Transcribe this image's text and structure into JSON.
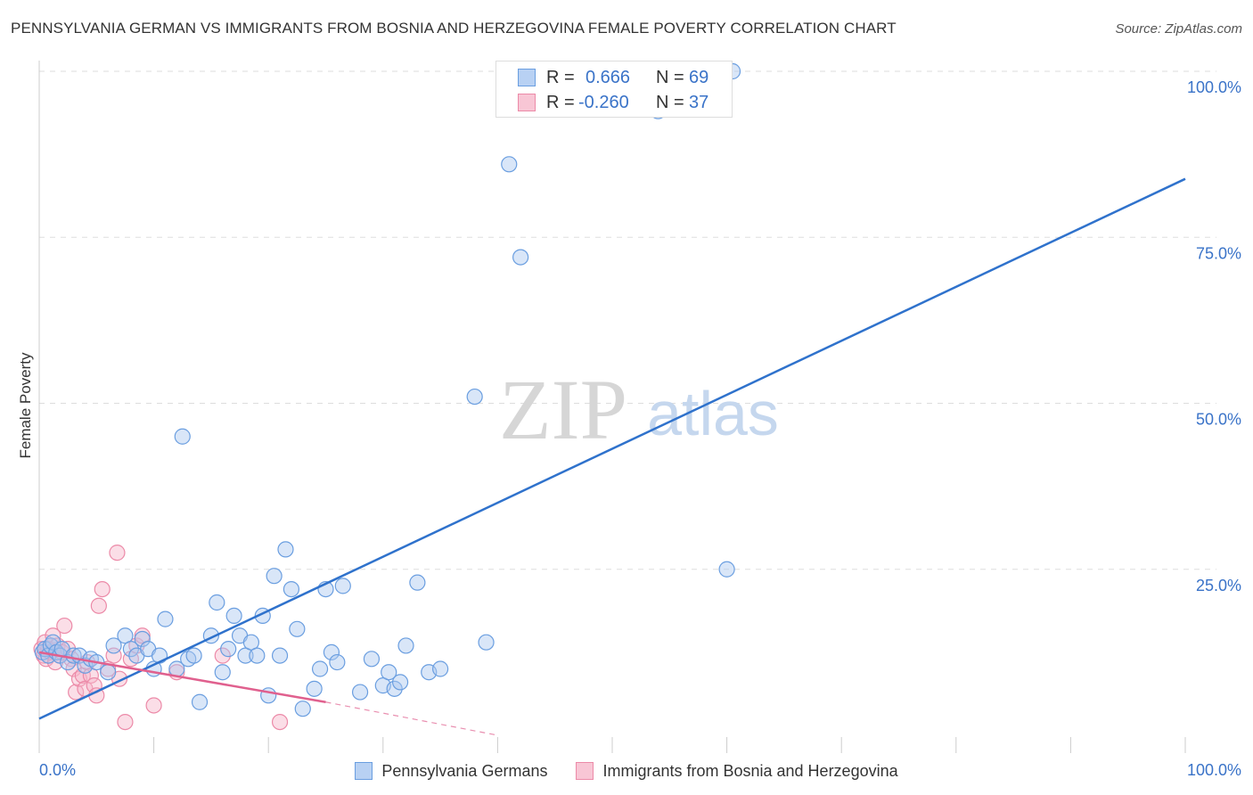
{
  "header": {
    "title": "PENNSYLVANIA GERMAN VS IMMIGRANTS FROM BOSNIA AND HERZEGOVINA FEMALE POVERTY CORRELATION CHART",
    "source": "Source: ZipAtlas.com"
  },
  "watermark": {
    "zip": "ZIP",
    "atlas": "atlas"
  },
  "stats": {
    "row1": {
      "r_label": "R =",
      "r_value": "0.666",
      "n_label": "N =",
      "n_value": "69"
    },
    "row2": {
      "r_label": "R =",
      "r_value": "-0.260",
      "n_label": "N =",
      "n_value": "37"
    }
  },
  "legend": {
    "item1": "Pennsylvania Germans",
    "item2": "Immigrants from Bosnia and Herzegovina"
  },
  "colors": {
    "blue_fill": "#aac8f0",
    "blue_stroke": "#6a9ee0",
    "blue_line": "#2f72cc",
    "pink_fill": "#f6b6c9",
    "pink_stroke": "#ec8aa8",
    "pink_line": "#e0608e",
    "grid": "#dddddd",
    "tick_label": "#3a73c8"
  },
  "chart_data": {
    "type": "scatter",
    "title": "PENNSYLVANIA GERMAN VS IMMIGRANTS FROM BOSNIA AND HERZEGOVINA FEMALE POVERTY CORRELATION CHART",
    "xlabel": "",
    "ylabel": "Female Poverty",
    "xlim": [
      0,
      100
    ],
    "ylim": [
      0,
      100
    ],
    "x_tick_labels": [
      {
        "value": 0,
        "label": "0.0%"
      },
      {
        "value": 100,
        "label": "100.0%"
      }
    ],
    "x_minor_ticks": [
      10,
      20,
      30,
      40,
      50,
      60,
      70,
      80,
      90,
      100
    ],
    "y_ticks": [
      {
        "value": 25,
        "label": "25.0%"
      },
      {
        "value": 50,
        "label": "50.0%"
      },
      {
        "value": 75,
        "label": "75.0%"
      },
      {
        "value": 100,
        "label": "100.0%"
      }
    ],
    "grid": true,
    "legend_position": "bottom",
    "series": [
      {
        "name": "Pennsylvania Germans",
        "color": "blue",
        "R": 0.666,
        "N": 69,
        "trend": {
          "x": [
            0,
            100
          ],
          "y": [
            2.5,
            83.8
          ]
        },
        "points": [
          [
            0.3,
            12.5
          ],
          [
            0.5,
            13
          ],
          [
            0.8,
            12
          ],
          [
            1.0,
            13.5
          ],
          [
            1.2,
            14
          ],
          [
            1.5,
            12.5
          ],
          [
            1.8,
            12
          ],
          [
            2.0,
            13
          ],
          [
            2.5,
            11
          ],
          [
            3.0,
            12
          ],
          [
            3.5,
            12
          ],
          [
            4.0,
            10.5
          ],
          [
            4.5,
            11.5
          ],
          [
            5.0,
            11
          ],
          [
            6.0,
            9.5
          ],
          [
            6.5,
            13.5
          ],
          [
            7.5,
            15
          ],
          [
            8.0,
            13
          ],
          [
            8.5,
            12
          ],
          [
            9.0,
            14.5
          ],
          [
            9.5,
            13
          ],
          [
            10.0,
            10
          ],
          [
            10.5,
            12
          ],
          [
            11.0,
            17.5
          ],
          [
            12.0,
            10
          ],
          [
            12.5,
            45
          ],
          [
            13.0,
            11.5
          ],
          [
            13.5,
            12
          ],
          [
            14.0,
            5
          ],
          [
            15.0,
            15
          ],
          [
            15.5,
            20
          ],
          [
            16.0,
            9.5
          ],
          [
            16.5,
            13
          ],
          [
            17.0,
            18
          ],
          [
            17.5,
            15
          ],
          [
            18.0,
            12
          ],
          [
            18.5,
            14
          ],
          [
            19.0,
            12
          ],
          [
            19.5,
            18
          ],
          [
            20.0,
            6
          ],
          [
            20.5,
            24
          ],
          [
            21.0,
            12
          ],
          [
            21.5,
            28
          ],
          [
            22.0,
            22
          ],
          [
            22.5,
            16
          ],
          [
            23.0,
            4
          ],
          [
            24.0,
            7
          ],
          [
            24.5,
            10
          ],
          [
            25.0,
            22
          ],
          [
            25.5,
            12.5
          ],
          [
            26.0,
            11
          ],
          [
            26.5,
            22.5
          ],
          [
            28.0,
            6.5
          ],
          [
            29.0,
            11.5
          ],
          [
            30.0,
            7.5
          ],
          [
            30.5,
            9.5
          ],
          [
            31.0,
            7
          ],
          [
            31.5,
            8
          ],
          [
            32.0,
            13.5
          ],
          [
            33.0,
            23
          ],
          [
            34.0,
            9.5
          ],
          [
            35.0,
            10
          ],
          [
            38.0,
            51
          ],
          [
            39.0,
            14
          ],
          [
            41.0,
            86
          ],
          [
            42.0,
            72
          ],
          [
            54.0,
            94
          ],
          [
            60.0,
            25
          ],
          [
            60.5,
            100
          ]
        ]
      },
      {
        "name": "Immigrants from Bosnia and Herzegovina",
        "color": "pink",
        "R": -0.26,
        "N": 37,
        "trend": {
          "x": [
            0,
            25
          ],
          "y": [
            12.5,
            5
          ],
          "dashed_to": {
            "x": 40,
            "y": 0
          }
        },
        "points": [
          [
            0.2,
            13
          ],
          [
            0.4,
            12
          ],
          [
            0.5,
            14
          ],
          [
            0.6,
            11.5
          ],
          [
            0.8,
            13
          ],
          [
            1.0,
            12.5
          ],
          [
            1.2,
            15
          ],
          [
            1.4,
            11
          ],
          [
            1.6,
            13.5
          ],
          [
            1.8,
            12
          ],
          [
            2.0,
            12.5
          ],
          [
            2.2,
            16.5
          ],
          [
            2.5,
            13
          ],
          [
            2.8,
            11.5
          ],
          [
            3.0,
            10
          ],
          [
            3.2,
            6.5
          ],
          [
            3.5,
            8.5
          ],
          [
            3.8,
            9
          ],
          [
            4.0,
            7
          ],
          [
            4.2,
            11
          ],
          [
            4.5,
            9
          ],
          [
            4.8,
            7.5
          ],
          [
            5.0,
            6
          ],
          [
            5.2,
            19.5
          ],
          [
            5.5,
            22
          ],
          [
            6.0,
            10
          ],
          [
            6.5,
            12
          ],
          [
            6.8,
            27.5
          ],
          [
            7.0,
            8.5
          ],
          [
            7.5,
            2
          ],
          [
            8.0,
            11.5
          ],
          [
            8.5,
            13.5
          ],
          [
            9.0,
            15
          ],
          [
            10.0,
            4.5
          ],
          [
            12.0,
            9.5
          ],
          [
            16.0,
            12
          ],
          [
            21.0,
            2
          ]
        ]
      }
    ]
  }
}
